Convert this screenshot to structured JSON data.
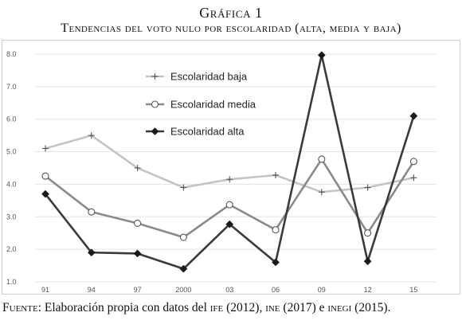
{
  "header": {
    "figure_label": "Gráfica 1",
    "title": "Tendencias del voto nulo por escolaridad (alta, media y baja)"
  },
  "source": {
    "label": "Fuente:",
    "text_a": " Elaboración propia con datos del ",
    "ife": "ife",
    "text_b": " (2012), ",
    "ine": "ine",
    "text_c": " (2017) e ",
    "inegi": "inegi",
    "text_d": " (2015)."
  },
  "chart_data": {
    "type": "line",
    "categories": [
      "91",
      "94",
      "97",
      "2000",
      "03",
      "06",
      "09",
      "12",
      "15"
    ],
    "ylim": [
      1.0,
      8.0
    ],
    "yticks": [
      "1.0",
      "2.0",
      "3.0",
      "4.0",
      "5.0",
      "6.0",
      "7.0",
      "8.0"
    ],
    "grid": true,
    "legend_position": "upper-left",
    "series": [
      {
        "name": "Escolaridad baja",
        "marker": "plus",
        "color": "#c4c4c4",
        "values": [
          5.1,
          5.5,
          4.5,
          3.9,
          4.15,
          4.28,
          3.76,
          3.9,
          4.2
        ]
      },
      {
        "name": "Escolaridad media",
        "marker": "circle",
        "color": "#8a8a8a",
        "values": [
          4.25,
          3.15,
          2.8,
          2.37,
          3.37,
          2.6,
          4.77,
          2.5,
          4.7
        ]
      },
      {
        "name": "Escolaridad alta",
        "marker": "diamond",
        "color": "#3a3a3a",
        "values": [
          3.7,
          1.9,
          1.87,
          1.4,
          2.77,
          1.6,
          7.97,
          1.63,
          6.1
        ]
      }
    ]
  }
}
